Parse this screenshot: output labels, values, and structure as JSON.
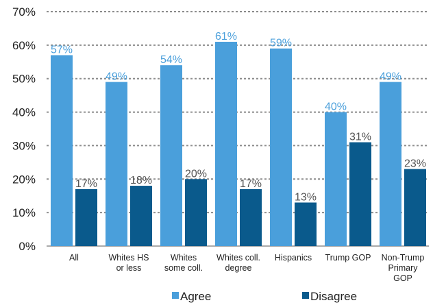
{
  "chart_data": {
    "type": "bar",
    "categories": [
      [
        "All"
      ],
      [
        "Whites HS",
        "or less"
      ],
      [
        "Whites",
        "some coll."
      ],
      [
        "Whites coll.",
        "degree"
      ],
      [
        "Hispanics"
      ],
      [
        "Trump GOP"
      ],
      [
        "Non-Trump",
        "Primary",
        "GOP"
      ]
    ],
    "series": [
      {
        "name": "Agree",
        "color": "#4A9FDB",
        "values": [
          57,
          49,
          54,
          61,
          59,
          40,
          49
        ]
      },
      {
        "name": "Disagree",
        "color": "#0A5A8C",
        "values": [
          17,
          18,
          20,
          17,
          13,
          31,
          23
        ]
      }
    ],
    "data_labels": [
      [
        "57%",
        "49%",
        "54%",
        "61%",
        "59%",
        "40%",
        "49%"
      ],
      [
        "17%",
        "18%",
        "20%",
        "17%",
        "13%",
        "31%",
        "23%"
      ]
    ],
    "y_ticks": [
      0,
      10,
      20,
      30,
      40,
      50,
      60,
      70
    ],
    "y_tick_labels": [
      "0%",
      "10%",
      "20%",
      "30%",
      "40%",
      "50%",
      "60%",
      "70%"
    ],
    "ylim": [
      0,
      70
    ],
    "grid": true,
    "legend_position": "bottom",
    "colors": {
      "agree_label": "#4A9FDB",
      "disagree_label": "#555555",
      "axis_text": "#222222",
      "grid": "#8c8c8c"
    }
  }
}
